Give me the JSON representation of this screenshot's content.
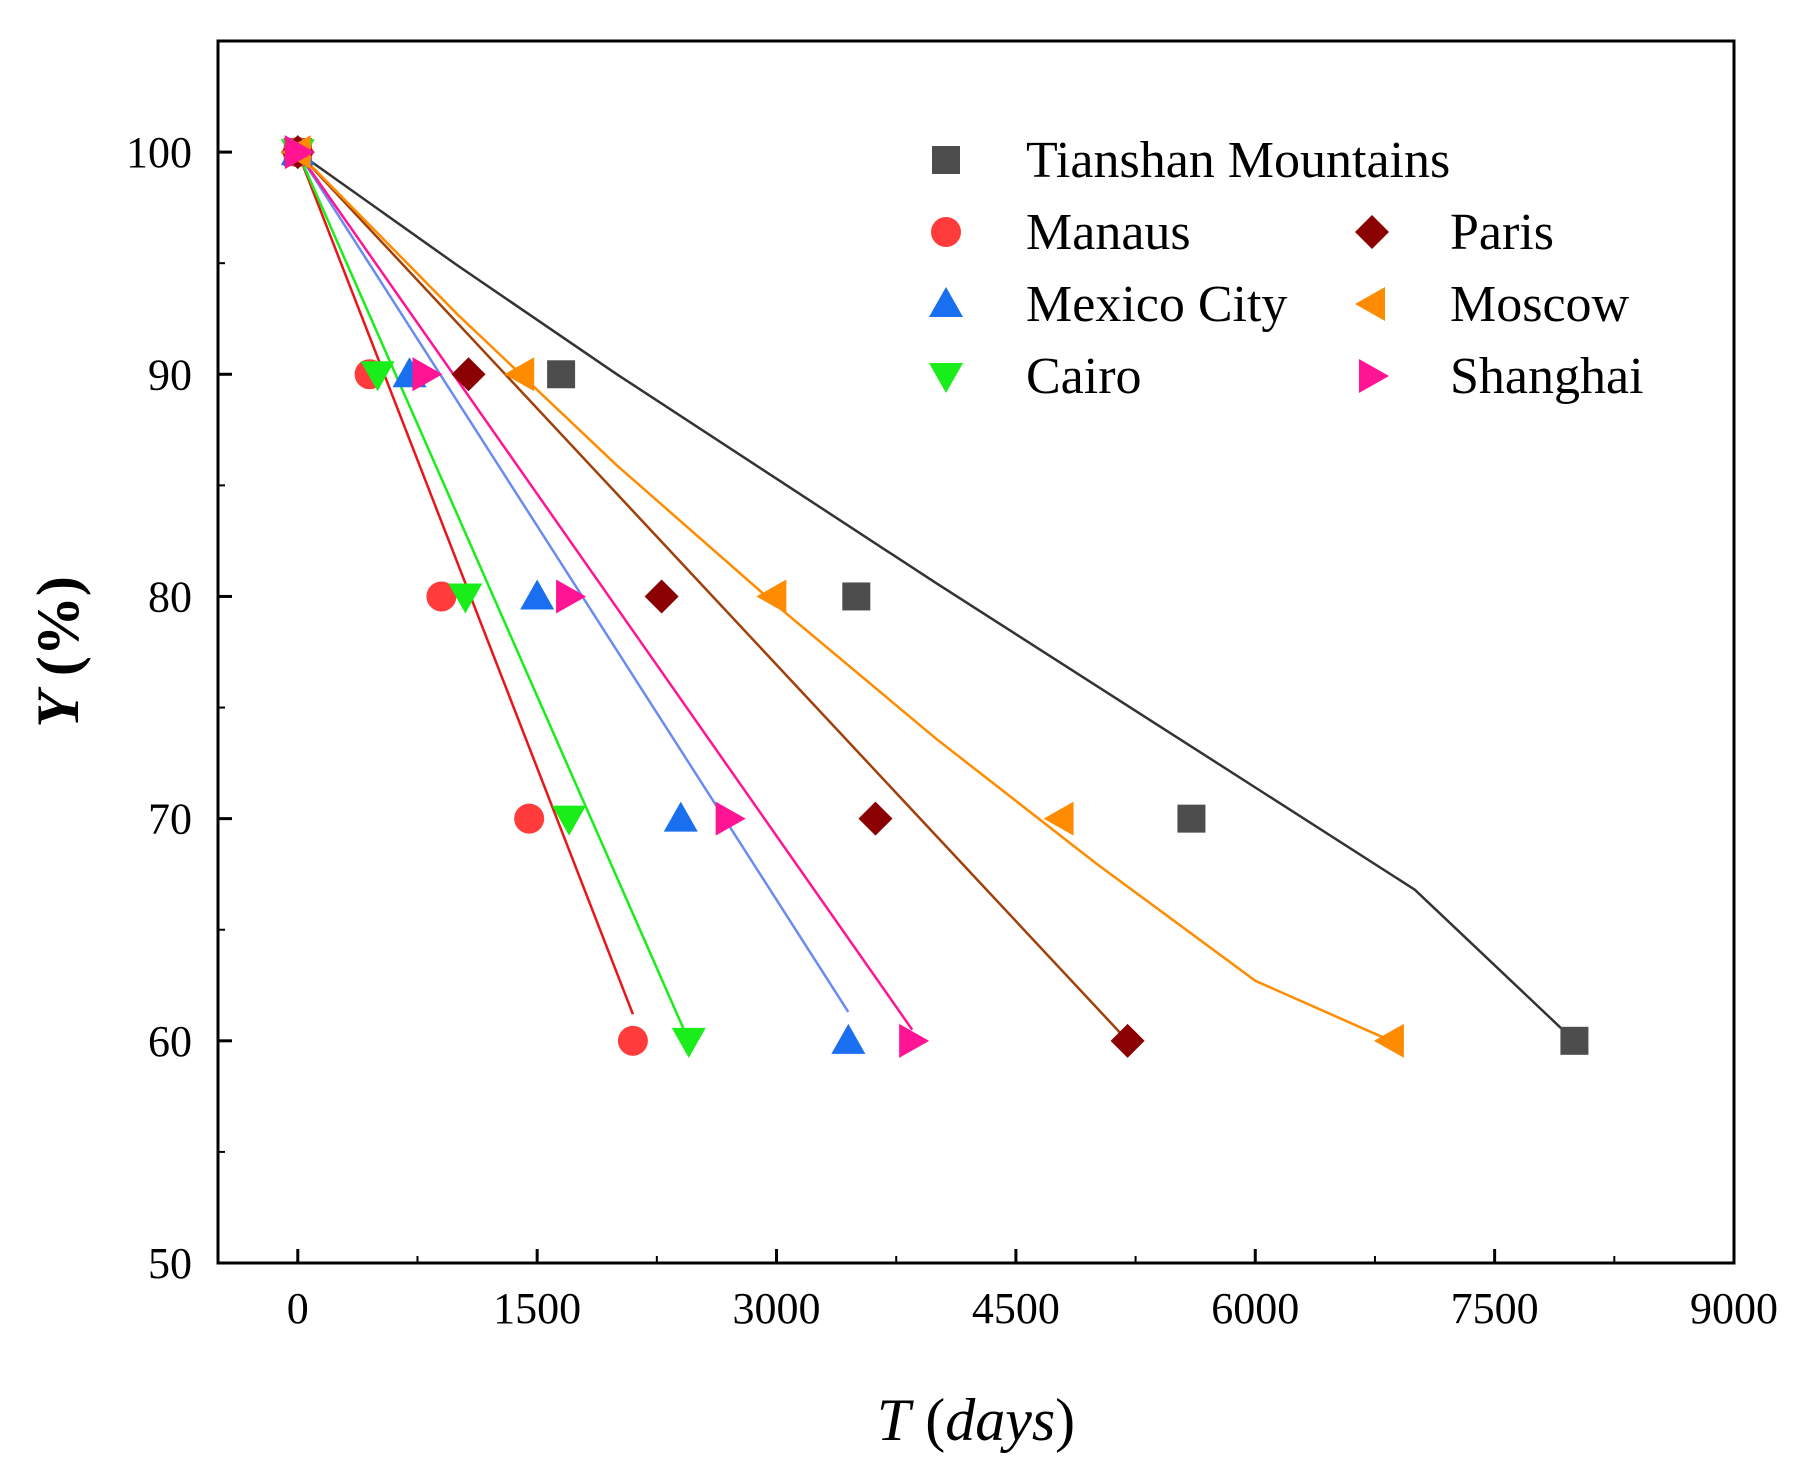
{
  "chart_data": {
    "type": "scatter",
    "title": "",
    "xlabel": {
      "italic": "T",
      "rest": " (",
      "italic2": "days",
      "close": ")"
    },
    "ylabel": {
      "italic": "Y",
      "rest": " (%)"
    },
    "xlim": [
      -500,
      9000
    ],
    "ylim": [
      50,
      105
    ],
    "xticks": [
      0,
      1500,
      3000,
      4500,
      6000,
      7500,
      9000
    ],
    "xtick_labels": [
      "0",
      "1500",
      "3000",
      "4500",
      "6000",
      "7500",
      "9000"
    ],
    "yticks": [
      50,
      60,
      70,
      80,
      90,
      100
    ],
    "ytick_labels": [
      "50",
      "60",
      "70",
      "80",
      "90",
      "100"
    ],
    "legend_position": "top-right",
    "series": [
      {
        "name": "Tianshan Mountains",
        "marker": "square",
        "color": "#4d4d4d",
        "line_color": "#333333",
        "x": [
          0,
          1650,
          3500,
          5600,
          8000
        ],
        "y": [
          100,
          90,
          80,
          70,
          60
        ],
        "fit_x": [
          0,
          1000,
          2000,
          3000,
          4000,
          5000,
          6000,
          7000,
          8000
        ],
        "fit_y": [
          100,
          94.9,
          90.0,
          85.3,
          80.6,
          76.0,
          71.4,
          66.8,
          60
        ]
      },
      {
        "name": "Manaus",
        "marker": "circle",
        "color": "#ff3b3b",
        "line_color": "#e8151b",
        "x": [
          0,
          450,
          900,
          1450,
          2100
        ],
        "y": [
          100,
          90,
          80,
          70,
          60
        ],
        "fit_x": [
          0,
          2100
        ],
        "fit_y": [
          100,
          61.2
        ]
      },
      {
        "name": "Mexico City",
        "marker": "triangle-up",
        "color": "#1a6ff0",
        "line_color": "#6a8cf0",
        "x": [
          0,
          700,
          1500,
          2400,
          3450
        ],
        "y": [
          100,
          90,
          80,
          70,
          60
        ],
        "fit_x": [
          0,
          3450
        ],
        "fit_y": [
          100,
          61.3
        ]
      },
      {
        "name": "Cairo",
        "marker": "triangle-down",
        "color": "#1aee1a",
        "line_color": "#1aee1a",
        "x": [
          0,
          500,
          1050,
          1700,
          2450
        ],
        "y": [
          100,
          90,
          80,
          70,
          60
        ],
        "fit_x": [
          0,
          2450
        ],
        "fit_y": [
          100,
          60
        ]
      },
      {
        "name": "Paris",
        "marker": "diamond",
        "color": "#8b0000",
        "line_color": "#a0400b",
        "x": [
          0,
          1070,
          2280,
          3620,
          5200
        ],
        "y": [
          100,
          90,
          80,
          70,
          60
        ],
        "fit_x": [
          0,
          5200
        ],
        "fit_y": [
          100,
          60
        ]
      },
      {
        "name": "Moscow",
        "marker": "triangle-left",
        "color": "#ff8c00",
        "line_color": "#ff8c00",
        "x": [
          0,
          1400,
          2980,
          4780,
          6850
        ],
        "y": [
          100,
          90,
          80,
          70,
          60
        ],
        "fit_x": [
          0,
          1000,
          2000,
          3000,
          4000,
          5000,
          6000,
          6850
        ],
        "fit_y": [
          100,
          92.7,
          85.9,
          79.6,
          73.6,
          68.0,
          62.7,
          60
        ]
      },
      {
        "name": "Shanghai",
        "marker": "triangle-right",
        "color": "#ff1493",
        "line_color": "#ff1493",
        "x": [
          0,
          800,
          1700,
          2700,
          3850
        ],
        "y": [
          100,
          90,
          80,
          70,
          60
        ],
        "fit_x": [
          0,
          3850
        ],
        "fit_y": [
          100,
          60.5
        ]
      }
    ]
  }
}
